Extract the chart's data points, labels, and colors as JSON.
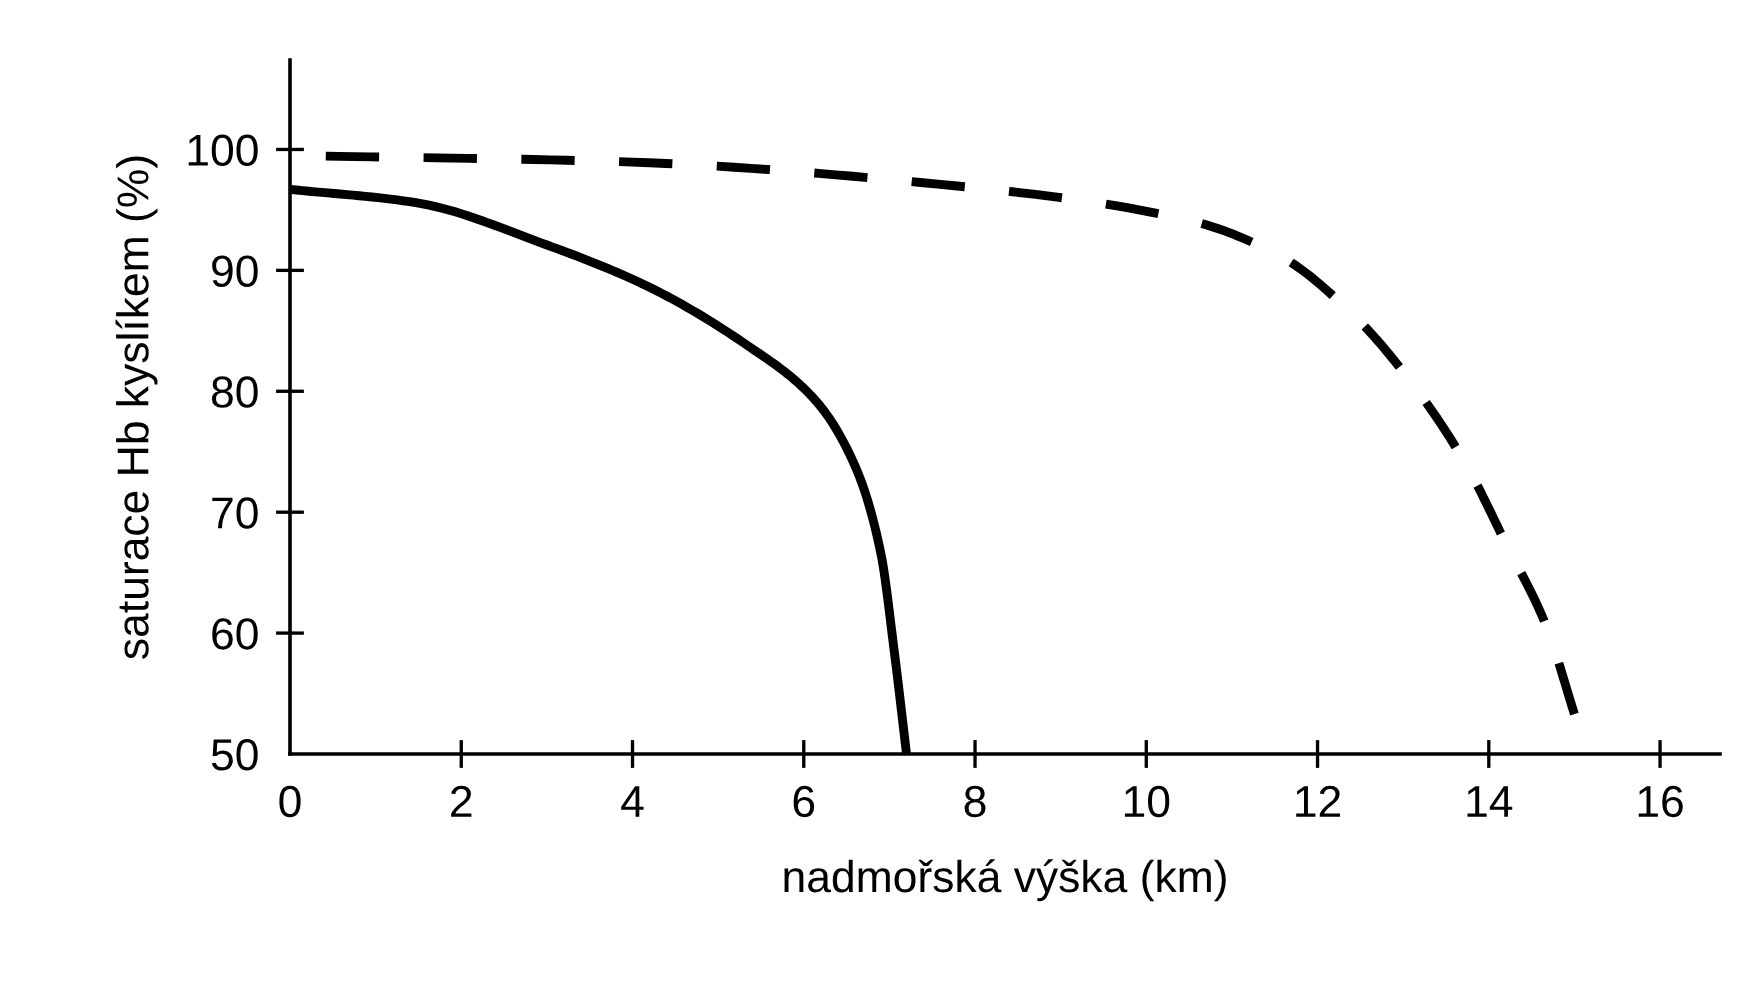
{
  "chart_data": {
    "type": "line",
    "xlabel": "nadmořská výška (km)",
    "ylabel": "saturace Hb kyslíkem (%)",
    "xlim": [
      0,
      16.7
    ],
    "ylim": [
      50,
      107.4
    ],
    "xticks": [
      0,
      2,
      4,
      6,
      8,
      10,
      12,
      14,
      16
    ],
    "yticks": [
      50,
      60,
      70,
      80,
      90,
      100
    ],
    "grid": false,
    "marker": "none",
    "series": [
      {
        "color": "#000000",
        "line_style": "solid",
        "x": [
          0,
          1.47,
          3.0,
          4.17,
          5.34,
          6.13,
          6.6,
          6.9,
          7.06,
          7.2
        ],
        "values": [
          96.7,
          95.6,
          92.1,
          88.7,
          83.8,
          79.3,
          73.8,
          66.6,
          58.3,
          50
        ]
      },
      {
        "color": "#000000",
        "line_style": "dashed",
        "x": [
          0,
          3.8,
          7.76,
          10.47,
          11.56,
          12.42,
          13.12,
          13.73,
          14.2,
          14.67,
          15.0
        ],
        "values": [
          99.5,
          99.0,
          97.0,
          94.2,
          91.2,
          86.3,
          80.5,
          74.0,
          67.4,
          60.6,
          53.3
        ]
      }
    ]
  }
}
